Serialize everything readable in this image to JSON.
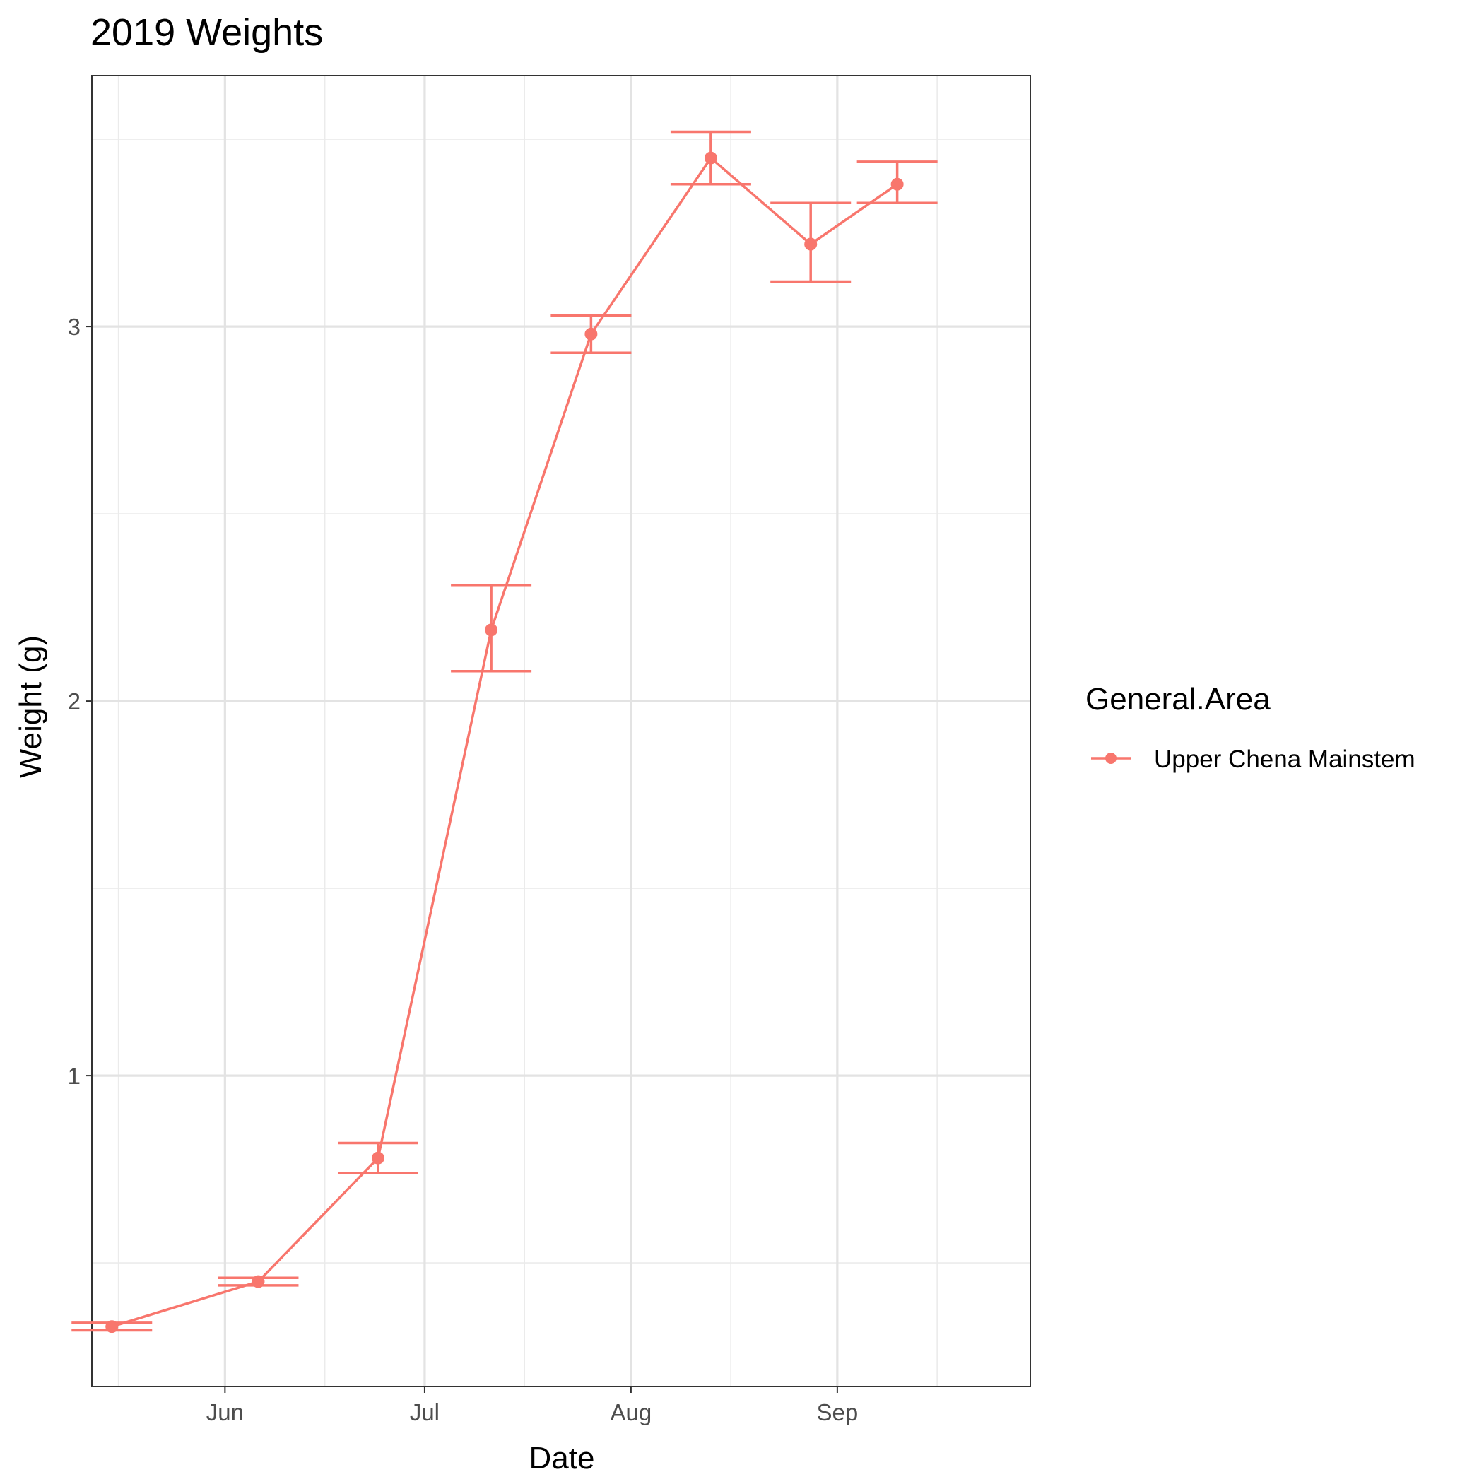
{
  "chart_data": {
    "type": "line",
    "title": "2019 Weights",
    "xlabel": "Date",
    "ylabel": "Weight (g)",
    "x_axis": {
      "type": "date",
      "range": [
        "2019-05-12",
        "2019-09-30"
      ],
      "major_ticks": [
        {
          "date": "2019-06-01",
          "label": "Jun"
        },
        {
          "date": "2019-07-01",
          "label": "Jul"
        },
        {
          "date": "2019-08-01",
          "label": "Aug"
        },
        {
          "date": "2019-09-01",
          "label": "Sep"
        }
      ],
      "minor_ticks": [
        "2019-05-16",
        "2019-06-16",
        "2019-07-16",
        "2019-08-16",
        "2019-09-16"
      ]
    },
    "y_axis": {
      "range": [
        0.17,
        3.67
      ],
      "major_ticks": [
        {
          "value": 1,
          "label": "1"
        },
        {
          "value": 2,
          "label": "2"
        },
        {
          "value": 3,
          "label": "3"
        }
      ],
      "minor_ticks": [
        0.5,
        1.5,
        2.5,
        3.5
      ]
    },
    "grid": true,
    "legend": {
      "title": "General.Area",
      "position": "right",
      "entries": [
        "Upper Chena Mainstem"
      ]
    },
    "series": [
      {
        "name": "Upper Chena Mainstem",
        "color": "#F8766D",
        "points": [
          {
            "x": "2019-05-15",
            "y": 0.33,
            "ymin": 0.32,
            "ymax": 0.34
          },
          {
            "x": "2019-06-06",
            "y": 0.45,
            "ymin": 0.44,
            "ymax": 0.46
          },
          {
            "x": "2019-06-24",
            "y": 0.78,
            "ymin": 0.74,
            "ymax": 0.82
          },
          {
            "x": "2019-07-11",
            "y": 2.19,
            "ymin": 2.08,
            "ymax": 2.31
          },
          {
            "x": "2019-07-26",
            "y": 2.98,
            "ymin": 2.93,
            "ymax": 3.03
          },
          {
            "x": "2019-08-13",
            "y": 3.45,
            "ymin": 3.38,
            "ymax": 3.52
          },
          {
            "x": "2019-08-28",
            "y": 3.22,
            "ymin": 3.12,
            "ymax": 3.33
          },
          {
            "x": "2019-09-10",
            "y": 3.38,
            "ymin": 3.33,
            "ymax": 3.44
          }
        ]
      }
    ]
  }
}
